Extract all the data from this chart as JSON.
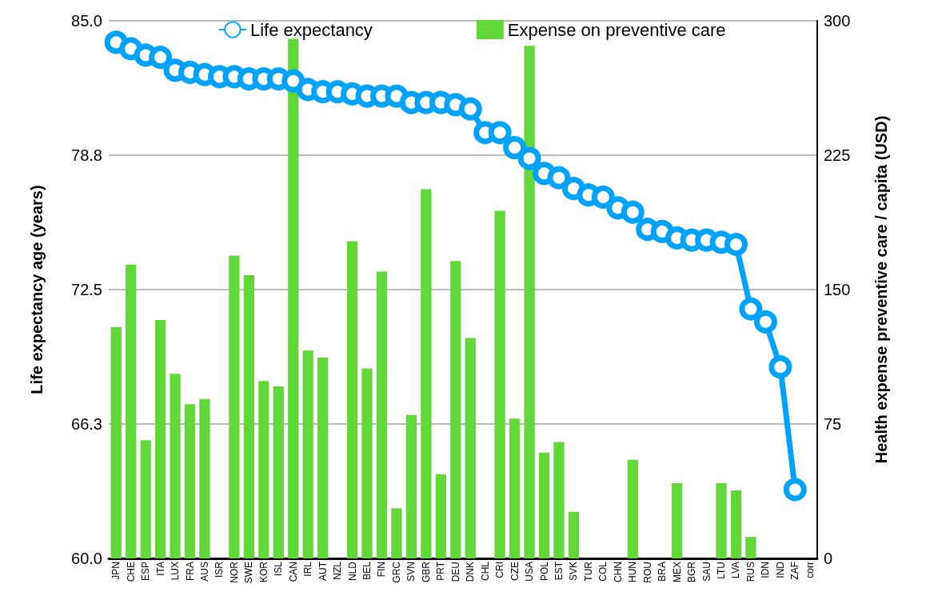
{
  "chart_data": {
    "type": "bar",
    "categories": [
      "JPN",
      "CHE",
      "ESP",
      "ITA",
      "LUX",
      "FRA",
      "AUS",
      "ISR",
      "NOR",
      "SWE",
      "KOR",
      "ISL",
      "CAN",
      "IRL",
      "AUT",
      "NZL",
      "NLD",
      "BEL",
      "FIN",
      "GRC",
      "SVN",
      "GBR",
      "PRT",
      "DEU",
      "DNK",
      "CHL",
      "CRI",
      "CZE",
      "USA",
      "POL",
      "EST",
      "SVK",
      "TUR",
      "COL",
      "CHN",
      "HUN",
      "ROU",
      "BRA",
      "MEX",
      "BGR",
      "SAU",
      "LTU",
      "LVA",
      "RUS",
      "IDN",
      "IND",
      "ZAF",
      "corr"
    ],
    "series": [
      {
        "name": "Life expectancy",
        "type": "line",
        "color": "#00a2ff",
        "values": [
          84.0,
          83.7,
          83.4,
          83.3,
          82.7,
          82.6,
          82.5,
          82.4,
          82.4,
          82.3,
          82.3,
          82.3,
          82.2,
          81.8,
          81.7,
          81.7,
          81.6,
          81.5,
          81.5,
          81.5,
          81.2,
          81.2,
          81.2,
          81.1,
          80.9,
          79.8,
          79.8,
          79.1,
          78.6,
          77.9,
          77.7,
          77.2,
          76.9,
          76.8,
          76.3,
          76.1,
          75.3,
          75.2,
          74.9,
          74.8,
          74.8,
          74.7,
          74.6,
          71.6,
          71.0,
          68.9,
          63.2,
          null
        ]
      },
      {
        "name": "Expense on preventive care",
        "axis": "y2",
        "color": "#62d838",
        "values": [
          129,
          164,
          66,
          133,
          103,
          86,
          89,
          null,
          169,
          158,
          99,
          96,
          290,
          116,
          112,
          null,
          177,
          106,
          160,
          28,
          80,
          206,
          47,
          166,
          123,
          null,
          194,
          78,
          286,
          59,
          65,
          26,
          null,
          null,
          null,
          55,
          null,
          null,
          42,
          null,
          null,
          42,
          38,
          12,
          null,
          null,
          null,
          null
        ]
      }
    ],
    "ylabel": "Life expectancy age (years)",
    "y2label": "Health expense preventive care / capita (USD)",
    "ylim": [
      60,
      85
    ],
    "yticks": [
      {
        "value": 60,
        "label": "60.0"
      },
      {
        "value": 66.25,
        "label": "66.3"
      },
      {
        "value": 72.5,
        "label": "72.5"
      },
      {
        "value": 78.75,
        "label": "78.8"
      },
      {
        "value": 85,
        "label": "85.0"
      }
    ],
    "y2lim": [
      0,
      300
    ],
    "y2ticks": [
      0,
      75,
      150,
      225,
      300
    ],
    "grid": "y",
    "legend": "top",
    "marker": "circle"
  }
}
